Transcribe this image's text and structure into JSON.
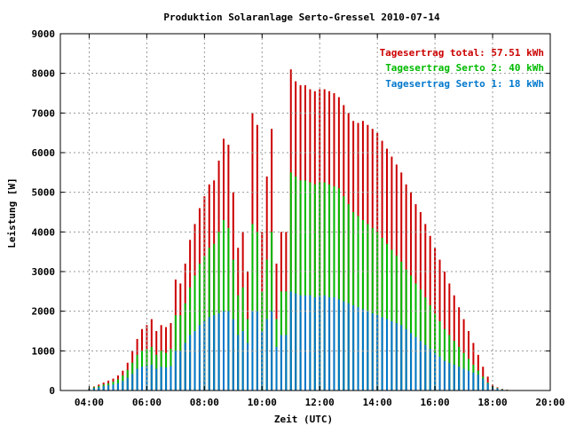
{
  "chart_data": {
    "type": "bar",
    "title": "Produktion Solaranlage Serto-Gressel 2010-07-14",
    "xlabel": "Zeit (UTC)",
    "ylabel": "Leistung [W]",
    "xlim": [
      3.0,
      20.0
    ],
    "ylim": [
      0,
      9000
    ],
    "x_ticks": [
      "04:00",
      "06:00",
      "08:00",
      "10:00",
      "12:00",
      "14:00",
      "16:00",
      "18:00",
      "20:00"
    ],
    "y_ticks": [
      "0",
      "1000",
      "2000",
      "3000",
      "4000",
      "5000",
      "6000",
      "7000",
      "8000",
      "9000"
    ],
    "grid": true,
    "legend_position": "top-right",
    "legend": [
      {
        "label": "Tagesertrag total: 57.51 kWh",
        "color": "#cc0000"
      },
      {
        "label": "Tagesertrag Serto 2: 40 kWh",
        "color": "#00bb00"
      },
      {
        "label": "Tagesertrag Serto 1: 18 kWh",
        "color": "#0077cc"
      }
    ],
    "interval_minutes": 10,
    "series": [
      {
        "name": "Tagesertrag total: 57.51 kWh",
        "color": "#cc0000",
        "x": [
          "04:00",
          "04:10",
          "04:20",
          "04:30",
          "04:40",
          "04:50",
          "05:00",
          "05:10",
          "05:20",
          "05:30",
          "05:40",
          "05:50",
          "06:00",
          "06:10",
          "06:20",
          "06:30",
          "06:40",
          "06:50",
          "07:00",
          "07:10",
          "07:20",
          "07:30",
          "07:40",
          "07:50",
          "08:00",
          "08:10",
          "08:20",
          "08:30",
          "08:40",
          "08:50",
          "09:00",
          "09:10",
          "09:20",
          "09:30",
          "09:40",
          "09:50",
          "10:00",
          "10:10",
          "10:20",
          "10:30",
          "10:40",
          "10:50",
          "11:00",
          "11:10",
          "11:20",
          "11:30",
          "11:40",
          "11:50",
          "12:00",
          "12:10",
          "12:20",
          "12:30",
          "12:40",
          "12:50",
          "13:00",
          "13:10",
          "13:20",
          "13:30",
          "13:40",
          "13:50",
          "14:00",
          "14:10",
          "14:20",
          "14:30",
          "14:40",
          "14:50",
          "15:00",
          "15:10",
          "15:20",
          "15:30",
          "15:40",
          "15:50",
          "16:00",
          "16:10",
          "16:20",
          "16:30",
          "16:40",
          "16:50",
          "17:00",
          "17:10",
          "17:20",
          "17:30",
          "17:40",
          "17:50",
          "18:00",
          "18:10",
          "18:20",
          "18:30"
        ],
        "values": [
          50,
          100,
          150,
          200,
          250,
          300,
          380,
          500,
          700,
          1000,
          1300,
          1550,
          1650,
          1800,
          1500,
          1650,
          1600,
          1700,
          2800,
          2700,
          3200,
          3800,
          4200,
          4600,
          4900,
          5200,
          5300,
          5800,
          6350,
          6200,
          5000,
          3600,
          4000,
          3000,
          7000,
          6700,
          4000,
          5400,
          6600,
          3200,
          4000,
          4000,
          8100,
          7800,
          7700,
          7700,
          7600,
          7550,
          7600,
          7600,
          7550,
          7500,
          7400,
          7200,
          7000,
          6800,
          6750,
          6800,
          6700,
          6600,
          6500,
          6300,
          6100,
          5900,
          5700,
          5500,
          5200,
          5000,
          4700,
          4500,
          4200,
          3900,
          3600,
          3300,
          3000,
          2700,
          2400,
          2100,
          1800,
          1500,
          1200,
          900,
          600,
          350,
          150,
          80,
          40,
          20
        ]
      },
      {
        "name": "Tagesertrag Serto 2: 40 kWh",
        "color": "#00bb00",
        "x": [
          "04:00",
          "04:10",
          "04:20",
          "04:30",
          "04:40",
          "04:50",
          "05:00",
          "05:10",
          "05:20",
          "05:30",
          "05:40",
          "05:50",
          "06:00",
          "06:10",
          "06:20",
          "06:30",
          "06:40",
          "06:50",
          "07:00",
          "07:10",
          "07:20",
          "07:30",
          "07:40",
          "07:50",
          "08:00",
          "08:10",
          "08:20",
          "08:30",
          "08:40",
          "08:50",
          "09:00",
          "09:10",
          "09:20",
          "09:30",
          "09:40",
          "09:50",
          "10:00",
          "10:10",
          "10:20",
          "10:30",
          "10:40",
          "10:50",
          "11:00",
          "11:10",
          "11:20",
          "11:30",
          "11:40",
          "11:50",
          "12:00",
          "12:10",
          "12:20",
          "12:30",
          "12:40",
          "12:50",
          "13:00",
          "13:10",
          "13:20",
          "13:30",
          "13:40",
          "13:50",
          "14:00",
          "14:10",
          "14:20",
          "14:30",
          "14:40",
          "14:50",
          "15:00",
          "15:10",
          "15:20",
          "15:30",
          "15:40",
          "15:50",
          "16:00",
          "16:10",
          "16:20",
          "16:30",
          "16:40",
          "16:50",
          "17:00",
          "17:10",
          "17:20",
          "17:30",
          "17:40",
          "17:50",
          "18:00",
          "18:10",
          "18:20",
          "18:30"
        ],
        "values": [
          40,
          80,
          110,
          150,
          180,
          220,
          280,
          380,
          520,
          700,
          900,
          1000,
          1050,
          1100,
          900,
          1000,
          950,
          1050,
          1900,
          1900,
          2200,
          2600,
          2900,
          3200,
          3400,
          3600,
          3700,
          4000,
          4300,
          4100,
          3300,
          2400,
          2600,
          1800,
          4200,
          4000,
          2500,
          3300,
          4000,
          1800,
          2500,
          2500,
          5500,
          5400,
          5300,
          5300,
          5250,
          5200,
          5250,
          5250,
          5200,
          5150,
          5100,
          4900,
          4700,
          4500,
          4400,
          4300,
          4200,
          4100,
          4000,
          3850,
          3700,
          3550,
          3400,
          3250,
          3050,
          2900,
          2700,
          2550,
          2350,
          2150,
          1950,
          1750,
          1550,
          1400,
          1250,
          1100,
          950,
          800,
          650,
          500,
          350,
          200,
          100,
          60,
          30,
          15
        ]
      },
      {
        "name": "Tagesertrag Serto 1: 18 kWh",
        "color": "#0077cc",
        "x": [
          "04:00",
          "04:10",
          "04:20",
          "04:30",
          "04:40",
          "04:50",
          "05:00",
          "05:10",
          "05:20",
          "05:30",
          "05:40",
          "05:50",
          "06:00",
          "06:10",
          "06:20",
          "06:30",
          "06:40",
          "06:50",
          "07:00",
          "07:10",
          "07:20",
          "07:30",
          "07:40",
          "07:50",
          "08:00",
          "08:10",
          "08:20",
          "08:30",
          "08:40",
          "08:50",
          "09:00",
          "09:10",
          "09:20",
          "09:30",
          "09:40",
          "09:50",
          "10:00",
          "10:10",
          "10:20",
          "10:30",
          "10:40",
          "10:50",
          "11:00",
          "11:10",
          "11:20",
          "11:30",
          "11:40",
          "11:50",
          "12:00",
          "12:10",
          "12:20",
          "12:30",
          "12:40",
          "12:50",
          "13:00",
          "13:10",
          "13:20",
          "13:30",
          "13:40",
          "13:50",
          "14:00",
          "14:10",
          "14:20",
          "14:30",
          "14:40",
          "14:50",
          "15:00",
          "15:10",
          "15:20",
          "15:30",
          "15:40",
          "15:50",
          "16:00",
          "16:10",
          "16:20",
          "16:30",
          "16:40",
          "16:50",
          "17:00",
          "17:10",
          "17:20",
          "17:30",
          "17:40",
          "17:50",
          "18:00",
          "18:10",
          "18:20",
          "18:30"
        ],
        "values": [
          30,
          60,
          80,
          110,
          130,
          150,
          180,
          240,
          320,
          420,
          550,
          600,
          620,
          650,
          550,
          600,
          580,
          620,
          1000,
          1000,
          1200,
          1400,
          1500,
          1650,
          1750,
          1850,
          1900,
          1950,
          2000,
          2000,
          1800,
          1400,
          1500,
          1200,
          2000,
          2000,
          1500,
          1800,
          2000,
          1100,
          1400,
          1400,
          2500,
          2450,
          2400,
          2400,
          2400,
          2350,
          2400,
          2400,
          2350,
          2350,
          2300,
          2250,
          2200,
          2150,
          2100,
          2050,
          2000,
          1950,
          1900,
          1850,
          1800,
          1750,
          1700,
          1650,
          1550,
          1450,
          1350,
          1250,
          1150,
          1050,
          950,
          850,
          750,
          700,
          650,
          600,
          550,
          500,
          450,
          400,
          300,
          180,
          80,
          50,
          25,
          10
        ]
      }
    ]
  }
}
